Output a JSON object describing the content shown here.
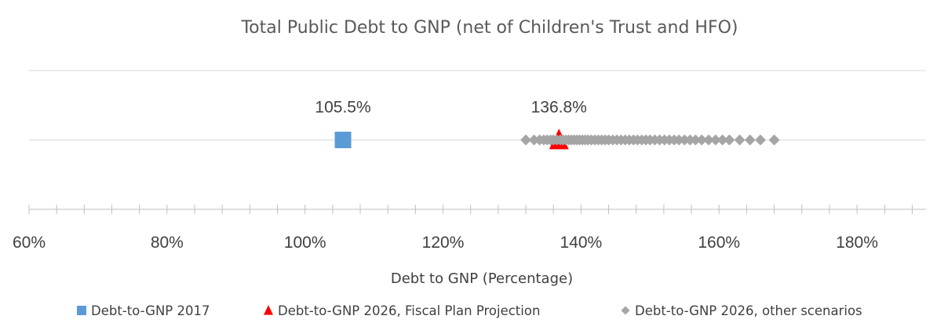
{
  "chart_data": {
    "type": "scatter",
    "title": "Total Public Debt to GNP (net of Children's Trust and HFO)",
    "xlabel": "Debt to GNP (Percentage)",
    "ylabel": "",
    "xlim": [
      60,
      190
    ],
    "x_ticks": [
      60,
      80,
      100,
      120,
      140,
      160,
      180
    ],
    "x_tick_labels": [
      "60%",
      "80%",
      "100%",
      "120%",
      "140%",
      "160%",
      "180%"
    ],
    "minor_tick_step": 4,
    "gridlines": [
      0,
      1,
      2
    ],
    "grid": true,
    "legend_position": "bottom",
    "series": [
      {
        "name": "Debt-to-GNP 2017",
        "marker": "square",
        "color": "#5B9BD5",
        "points": [
          {
            "x": 105.5,
            "y": 1
          }
        ],
        "data_label": "105.5%"
      },
      {
        "name": "Debt-to-GNP 2026, Fiscal Plan Projection",
        "marker": "triangle",
        "color": "#FF0000",
        "points": [
          {
            "x": 136.8,
            "y": 1
          }
        ],
        "data_label": "136.8%"
      },
      {
        "name": "Debt-to-GNP 2026, other scenarios",
        "marker": "diamond",
        "color": "#A5A5A5",
        "points": [
          {
            "x": 132.0,
            "y": 1
          },
          {
            "x": 133.2,
            "y": 1
          },
          {
            "x": 134.0,
            "y": 1
          },
          {
            "x": 134.6,
            "y": 1
          },
          {
            "x": 135.1,
            "y": 1
          },
          {
            "x": 135.6,
            "y": 1
          },
          {
            "x": 136.0,
            "y": 1
          },
          {
            "x": 136.5,
            "y": 1
          },
          {
            "x": 137.0,
            "y": 1
          },
          {
            "x": 137.4,
            "y": 1
          },
          {
            "x": 137.8,
            "y": 1
          },
          {
            "x": 138.2,
            "y": 1
          },
          {
            "x": 138.6,
            "y": 1
          },
          {
            "x": 139.0,
            "y": 1
          },
          {
            "x": 139.4,
            "y": 1
          },
          {
            "x": 139.8,
            "y": 1
          },
          {
            "x": 140.2,
            "y": 1
          },
          {
            "x": 140.6,
            "y": 1
          },
          {
            "x": 141.0,
            "y": 1
          },
          {
            "x": 141.5,
            "y": 1
          },
          {
            "x": 142.0,
            "y": 1
          },
          {
            "x": 142.5,
            "y": 1
          },
          {
            "x": 143.0,
            "y": 1
          },
          {
            "x": 143.5,
            "y": 1
          },
          {
            "x": 144.0,
            "y": 1
          },
          {
            "x": 144.6,
            "y": 1
          },
          {
            "x": 145.2,
            "y": 1
          },
          {
            "x": 145.8,
            "y": 1
          },
          {
            "x": 146.4,
            "y": 1
          },
          {
            "x": 147.0,
            "y": 1
          },
          {
            "x": 147.6,
            "y": 1
          },
          {
            "x": 148.2,
            "y": 1
          },
          {
            "x": 148.8,
            "y": 1
          },
          {
            "x": 149.4,
            "y": 1
          },
          {
            "x": 150.0,
            "y": 1
          },
          {
            "x": 150.7,
            "y": 1
          },
          {
            "x": 151.4,
            "y": 1
          },
          {
            "x": 152.1,
            "y": 1
          },
          {
            "x": 152.8,
            "y": 1
          },
          {
            "x": 153.5,
            "y": 1
          },
          {
            "x": 154.2,
            "y": 1
          },
          {
            "x": 155.0,
            "y": 1
          },
          {
            "x": 155.8,
            "y": 1
          },
          {
            "x": 156.6,
            "y": 1
          },
          {
            "x": 157.5,
            "y": 1
          },
          {
            "x": 158.5,
            "y": 1
          },
          {
            "x": 159.5,
            "y": 1
          },
          {
            "x": 160.5,
            "y": 1
          },
          {
            "x": 161.5,
            "y": 1
          },
          {
            "x": 163.0,
            "y": 1
          },
          {
            "x": 164.5,
            "y": 1
          },
          {
            "x": 166.0,
            "y": 1
          },
          {
            "x": 168.0,
            "y": 1
          }
        ]
      }
    ]
  }
}
